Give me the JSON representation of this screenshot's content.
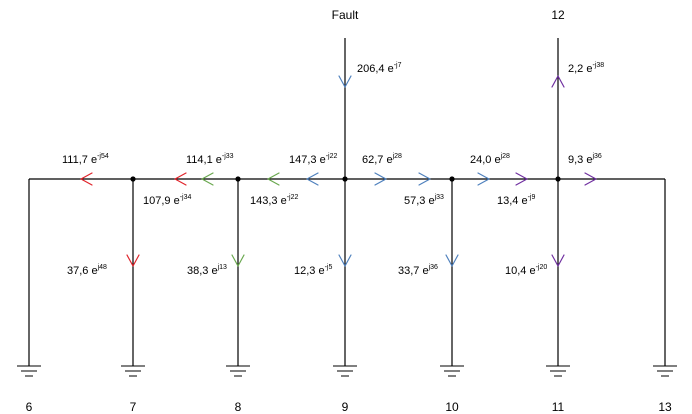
{
  "colors": {
    "red": "#e0242b",
    "green": "#6aa84f",
    "blue": "#4f81bd",
    "purple": "#7030a0",
    "wire": "#000000"
  },
  "nodes": {
    "n6": "6",
    "n7": "7",
    "n8": "8",
    "n9": "9",
    "n10": "10",
    "n11": "11",
    "n13": "13",
    "n12": "12",
    "fault": "Fault"
  },
  "currents": {
    "fault_feed": {
      "mag": "206,4 e",
      "exp": "-j7"
    },
    "top_12": {
      "mag": "2,2 e",
      "exp": "-j38"
    },
    "b_6_7": {
      "mag": "111,7 e",
      "exp": "-j54"
    },
    "b_7_8": {
      "mag": "114,1 e",
      "exp": "-j33"
    },
    "b_8_9": {
      "mag": "147,3 e",
      "exp": "-j22"
    },
    "b_9_10": {
      "mag": "62,7 e",
      "exp": "j28"
    },
    "b_10_11": {
      "mag": "24,0 e",
      "exp": "j28"
    },
    "b_11_13": {
      "mag": "9,3 e",
      "exp": "j36"
    },
    "low_7": {
      "mag": "107,9 e",
      "exp": "-j34"
    },
    "low_8": {
      "mag": "143,3 e",
      "exp": "-j22"
    },
    "low_10": {
      "mag": "57,3 e",
      "exp": "j33"
    },
    "low_11": {
      "mag": "13,4 e",
      "exp": "-j9"
    },
    "shunt_7": {
      "mag": "37,6 e",
      "exp": "j48"
    },
    "shunt_8": {
      "mag": "38,3 e",
      "exp": "j13"
    },
    "shunt_9": {
      "mag": "12,3 e",
      "exp": "-j5"
    },
    "shunt_10": {
      "mag": "33,7 e",
      "exp": "j36"
    },
    "shunt_11": {
      "mag": "10,4 e",
      "exp": "-j20"
    }
  }
}
